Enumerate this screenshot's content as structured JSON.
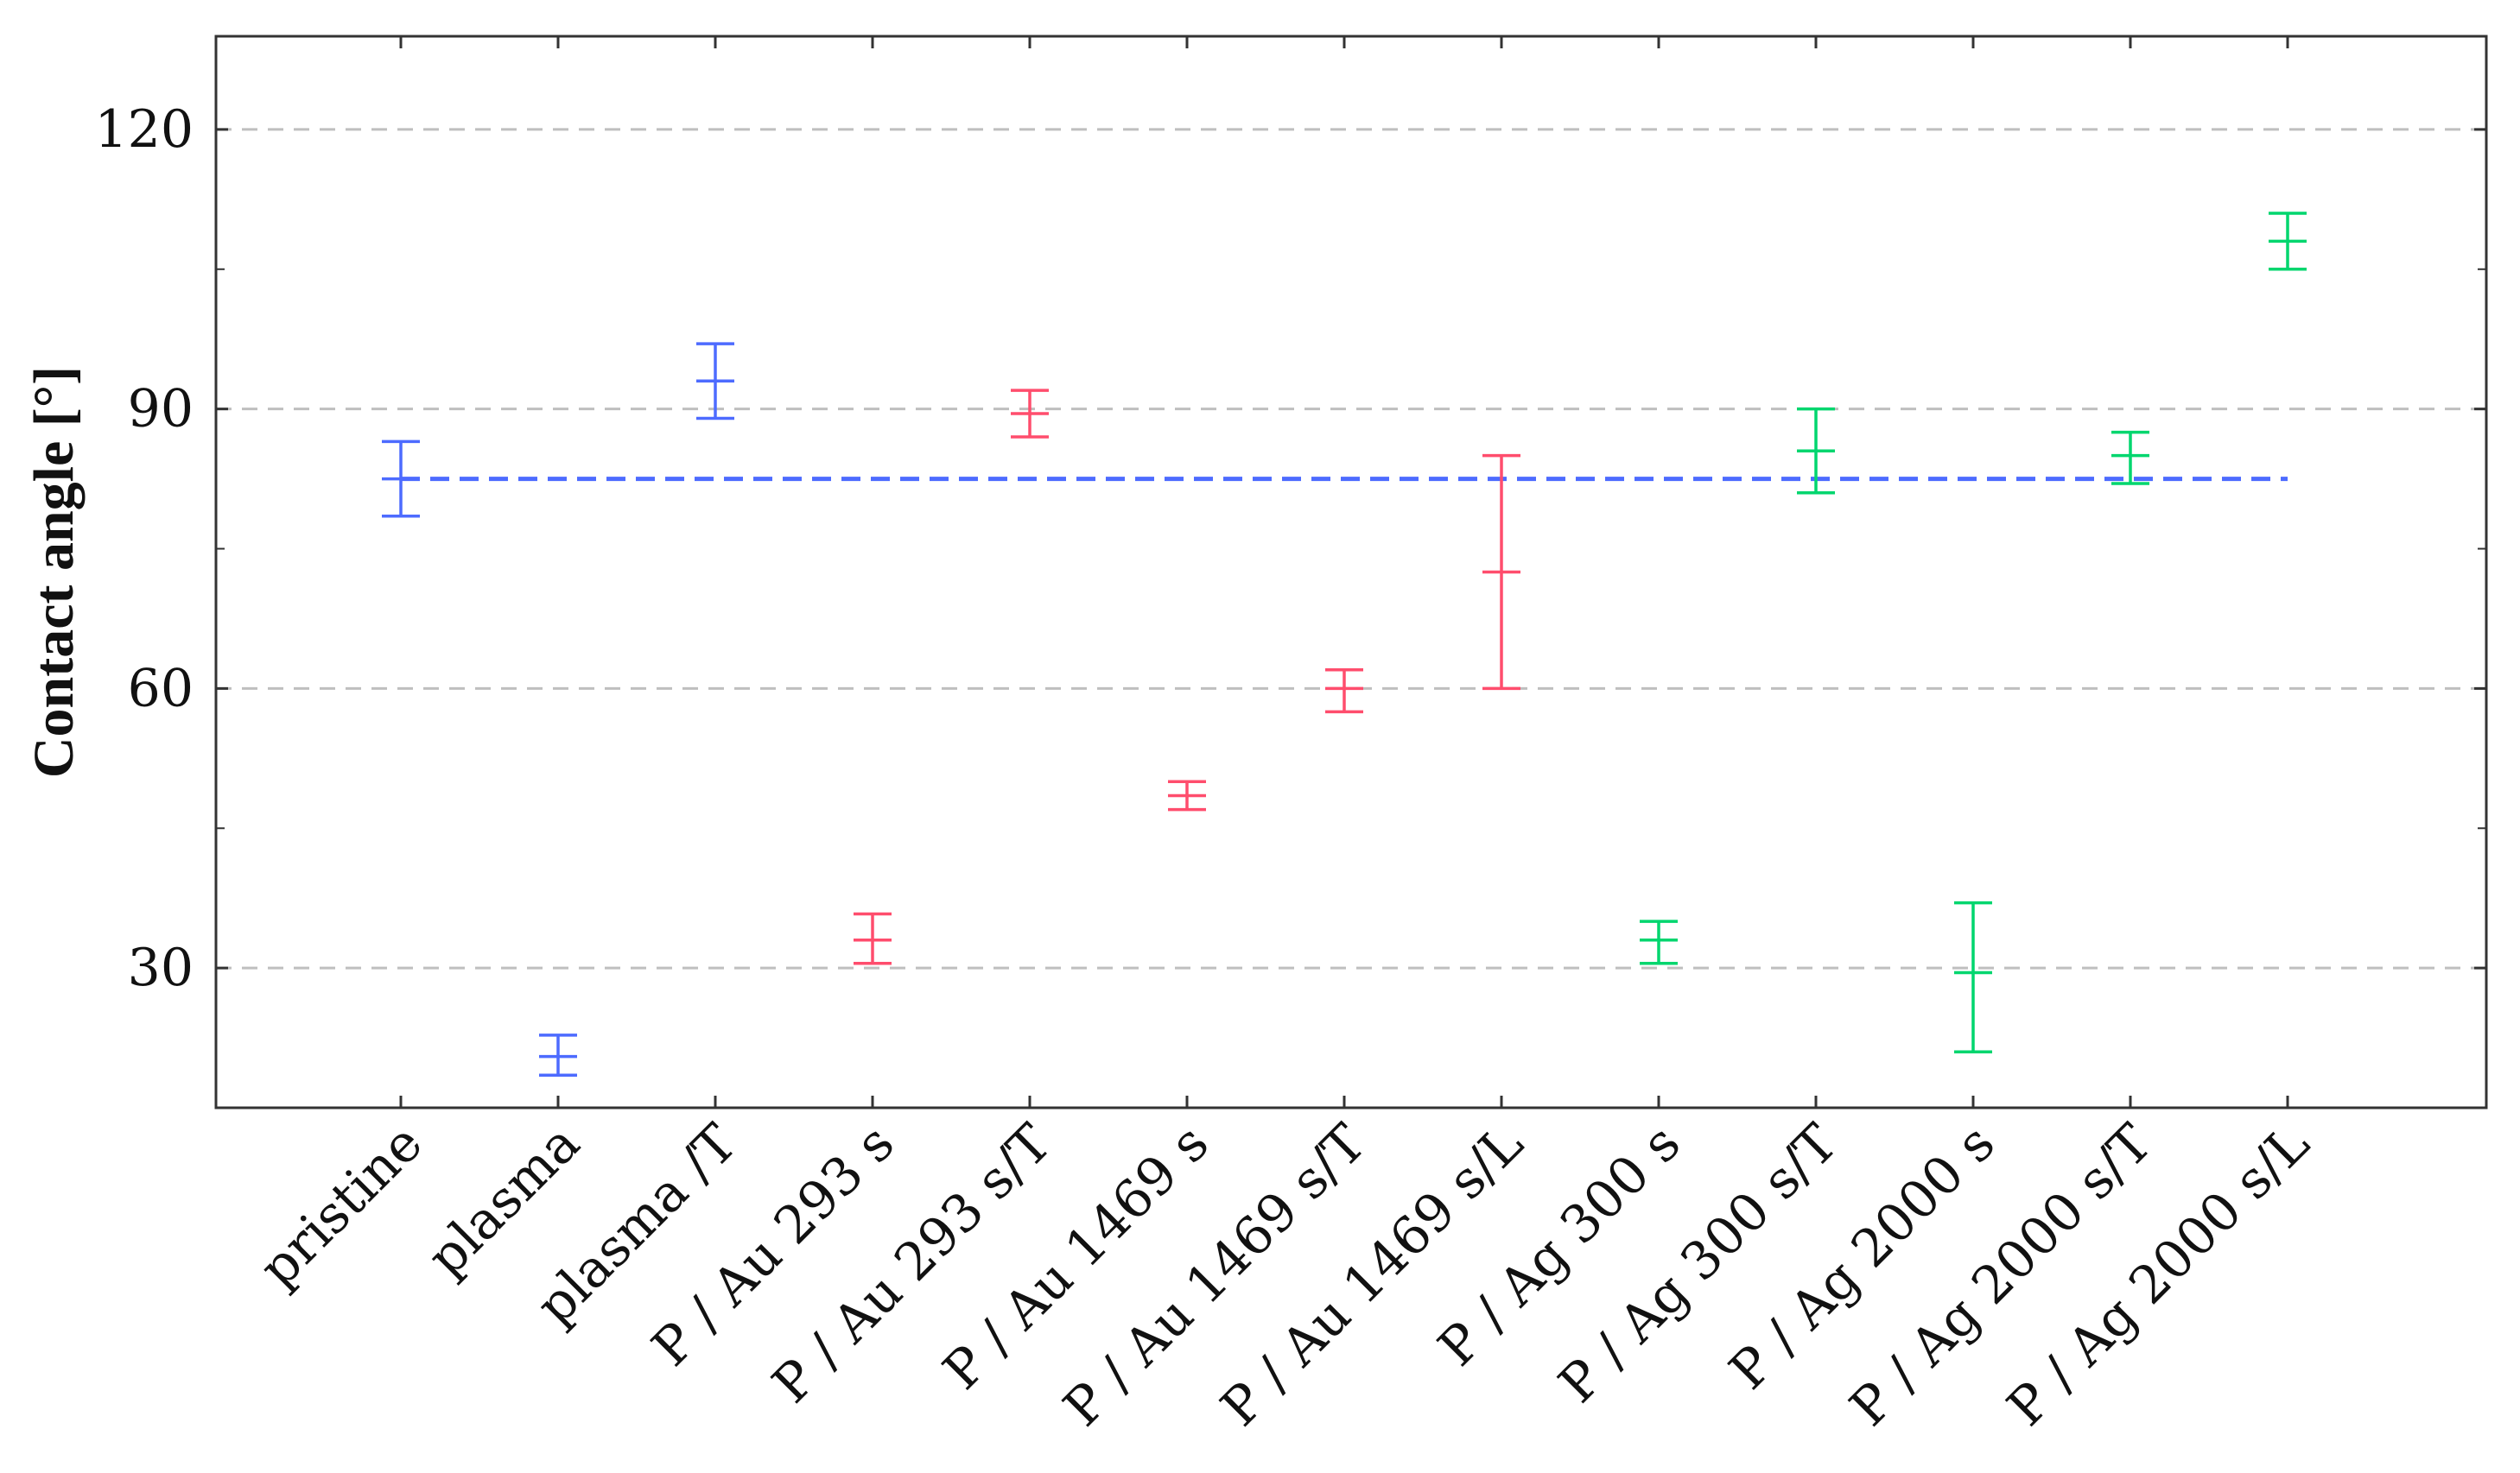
{
  "chart_data": {
    "type": "scatter",
    "ylabel": "Contact angle [°]",
    "xlabel": "",
    "ylim": [
      15,
      130
    ],
    "yticks": [
      30,
      60,
      90,
      120
    ],
    "ytick_labels": [
      "30",
      "60",
      "90",
      "120"
    ],
    "grid": "horizontal dashed at y ticks",
    "categories": [
      "pristine",
      "plasma",
      "plasma /T",
      "P / Au 293 s",
      "P / Au 293 s/T",
      "P / Au 1469 s",
      "P / Au 1469 s/T",
      "P / Au 1469 s/L",
      "P / Ag 300 s",
      "P / Ag 300 s/T",
      "P / Ag 2000 s",
      "P / Ag 2000 s/T",
      "P / Ag 2000 s/L"
    ],
    "series": [
      {
        "color": "#4d6bff",
        "points": [
          {
            "category": "pristine",
            "value": 82.5,
            "low": 78.5,
            "high": 86.5
          },
          {
            "category": "plasma",
            "value": 20.5,
            "low": 18.5,
            "high": 22.8
          },
          {
            "category": "plasma /T",
            "value": 93,
            "low": 89,
            "high": 97
          }
        ]
      },
      {
        "color": "#ff4d6d",
        "points": [
          {
            "category": "P / Au 293 s",
            "value": 33,
            "low": 30.5,
            "high": 35.8
          },
          {
            "category": "P / Au 293 s/T",
            "value": 89.5,
            "low": 87,
            "high": 92
          },
          {
            "category": "P / Au 1469 s",
            "value": 48.5,
            "low": 47,
            "high": 50
          },
          {
            "category": "P / Au 1469 s/T",
            "value": 60,
            "low": 57.5,
            "high": 62
          },
          {
            "category": "P / Au 1469 s/L",
            "value": 72.5,
            "low": 60,
            "high": 85
          }
        ]
      },
      {
        "color": "#00d66e",
        "points": [
          {
            "category": "P / Ag 300 s",
            "value": 33,
            "low": 30.5,
            "high": 35
          },
          {
            "category": "P / Ag 300 s/T",
            "value": 85.5,
            "low": 81,
            "high": 90
          },
          {
            "category": "P / Ag 2000 s",
            "value": 29.5,
            "low": 21,
            "high": 37
          },
          {
            "category": "P / Ag 2000 s/T",
            "value": 85,
            "low": 82,
            "high": 87.5
          },
          {
            "category": "P / Ag 2000 s/L",
            "value": 108,
            "low": 105,
            "high": 111
          }
        ]
      }
    ],
    "reference_line": {
      "value": 82.5,
      "from_category": "pristine",
      "to_category": "P / Ag 2000 s/L",
      "color": "#4d6bff",
      "style": "dashed"
    }
  }
}
